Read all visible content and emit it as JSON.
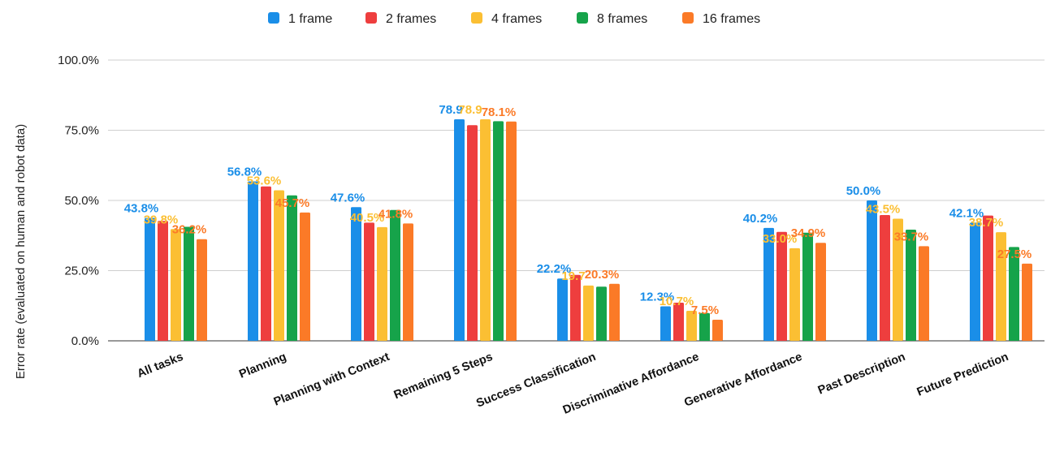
{
  "chart_data": {
    "type": "bar",
    "ylabel": "Error rate (evaluated on human and robot data)",
    "ylim": [
      0,
      100
    ],
    "yticks": [
      "0.0%",
      "25.0%",
      "50.0%",
      "75.0%",
      "100.0%"
    ],
    "grid": true,
    "legend_position": "top",
    "categories": [
      "All tasks",
      "Planning",
      "Planning with Context",
      "Remaining 5 Steps",
      "Success Classification",
      "Discriminative Affordance",
      "Generative Affordance",
      "Past Description",
      "Future Prediction"
    ],
    "series": [
      {
        "name": "1 frame",
        "color": "#1a8ee8",
        "values": [
          43.8,
          56.8,
          47.6,
          78.9,
          22.2,
          12.3,
          40.2,
          50.0,
          42.1
        ],
        "labels": [
          "43.8%",
          "56.8%",
          "47.6%",
          "78.9",
          "22.2%",
          "12.3%",
          "40.2%",
          "50.0%",
          "42.1%"
        ]
      },
      {
        "name": "2 frames",
        "color": "#ee3e3e",
        "values": [
          42.7,
          55.0,
          42.1,
          76.8,
          23.5,
          13.6,
          38.8,
          44.8,
          44.6
        ],
        "labels": [
          "",
          "",
          "",
          "",
          "",
          "",
          "",
          "",
          ""
        ]
      },
      {
        "name": "4 frames",
        "color": "#fbbf33",
        "values": [
          39.8,
          53.6,
          40.5,
          78.9,
          19.7,
          10.7,
          33.0,
          43.5,
          38.7
        ],
        "labels": [
          "39.8%",
          "53.6%",
          "40.5%",
          "78.9",
          "19.7",
          "10.7%",
          "33.0%",
          "43.5%",
          "38.7%"
        ]
      },
      {
        "name": "8 frames",
        "color": "#16a34a",
        "values": [
          40.6,
          51.8,
          46.6,
          78.2,
          19.3,
          9.9,
          38.5,
          39.6,
          33.4
        ],
        "labels": [
          "",
          "",
          "",
          "",
          "",
          "",
          "",
          "",
          ""
        ]
      },
      {
        "name": "16 frames",
        "color": "#fb7a27",
        "values": [
          36.2,
          45.7,
          41.8,
          78.1,
          20.3,
          7.5,
          34.9,
          33.7,
          27.5
        ],
        "labels": [
          "36.2%",
          "45.7%",
          "41.8%",
          "78.1%",
          "20.3%",
          "7.5%",
          "34.9%",
          "33.7%",
          "27.5%"
        ]
      }
    ]
  }
}
